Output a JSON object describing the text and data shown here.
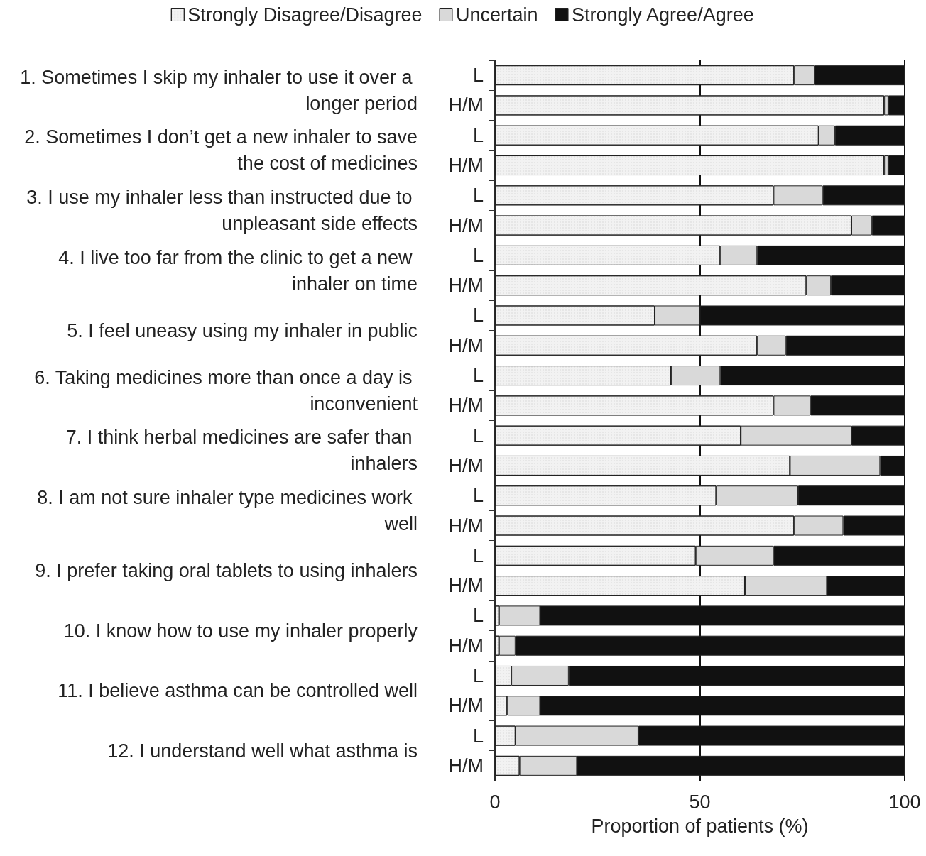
{
  "chart_data": {
    "type": "bar",
    "orientation": "horizontal",
    "stacked": true,
    "categories": [
      "L",
      "H/M",
      "L",
      "H/M",
      "L",
      "H/M",
      "L",
      "H/M",
      "L",
      "H/M",
      "L",
      "H/M",
      "L",
      "H/M",
      "L",
      "H/M",
      "L",
      "H/M",
      "L",
      "H/M",
      "L",
      "H/M",
      "L",
      "H/M"
    ],
    "series": [
      {
        "name": "Strongly Disagree/Disagree",
        "color": "#f2f2f2",
        "values": [
          73,
          95,
          79,
          95,
          68,
          87,
          55,
          76,
          39,
          64,
          43,
          68,
          60,
          72,
          54,
          73,
          49,
          61,
          1,
          1,
          4,
          3,
          5,
          6
        ]
      },
      {
        "name": "Uncertain",
        "color": "#d9d9d9",
        "values": [
          5,
          1,
          4,
          1,
          12,
          5,
          9,
          6,
          11,
          7,
          12,
          9,
          27,
          22,
          20,
          12,
          19,
          20,
          10,
          4,
          14,
          8,
          30,
          14
        ]
      },
      {
        "name": "Strongly Agree/Agree",
        "color": "#111111",
        "values": [
          22,
          4,
          17,
          4,
          20,
          8,
          36,
          18,
          50,
          29,
          45,
          23,
          13,
          6,
          26,
          15,
          32,
          19,
          89,
          95,
          82,
          89,
          65,
          80
        ]
      }
    ],
    "xlabel": "Proportion of patients (%)",
    "xlim": [
      0,
      100
    ],
    "xticks": [
      0,
      50,
      100
    ],
    "grid": "x",
    "legend": "top",
    "annotations": [
      "1. Sometimes I skip my inhaler to use it over a longer period",
      "2. Sometimes I don’t get a new inhaler to save the cost of medicines",
      "3. I use my inhaler less than instructed due to unpleasant side effects",
      "4. I live too far from the clinic to get a new inhaler on time",
      "5. I feel uneasy using my inhaler in public",
      "6. Taking medicines more than once a day is inconvenient",
      "7. I think herbal medicines are safer than inhalers",
      "8. I am not sure inhaler type medicines work well",
      "9. I prefer taking oral tablets to using inhalers",
      "10. I know how to use my inhaler properly",
      "11. I believe asthma can be controlled well",
      "12. I understand well what asthma is"
    ]
  }
}
